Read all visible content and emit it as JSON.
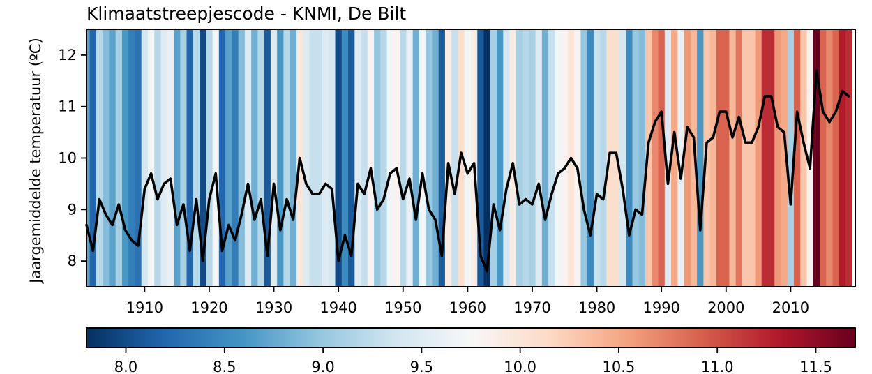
{
  "chart_data": {
    "type": "line",
    "title": "Klimaatstreepjescode - KNMI, De Bilt",
    "xlabel": "",
    "ylabel": "Jaargemiddelde temperatuur (ºC)",
    "xlim": [
      1901,
      2020
    ],
    "ylim": [
      7.5,
      12.5
    ],
    "x_ticks": [
      "1910",
      "1920",
      "1930",
      "1940",
      "1950",
      "1960",
      "1970",
      "1980",
      "1990",
      "2000",
      "2010"
    ],
    "y_ticks": [
      "8",
      "9",
      "10",
      "11",
      "12"
    ],
    "grid": false,
    "background": "warming stripes (one vertical band per year, colored by that year's temperature)",
    "line_color": "#000000",
    "series": [
      {
        "x": [
          1901,
          1902,
          1903,
          1904,
          1905,
          1906,
          1907,
          1908,
          1909,
          1910,
          1911,
          1912,
          1913,
          1914,
          1915,
          1916,
          1917,
          1918,
          1919,
          1920,
          1921,
          1922,
          1923,
          1924,
          1925,
          1926,
          1927,
          1928,
          1929,
          1930,
          1931,
          1932,
          1933,
          1934,
          1935,
          1936,
          1937,
          1938,
          1939,
          1940,
          1941,
          1942,
          1943,
          1944,
          1945,
          1946,
          1947,
          1948,
          1949,
          1950,
          1951,
          1952,
          1953,
          1954,
          1955,
          1956,
          1957,
          1958,
          1959,
          1960,
          1961,
          1962,
          1963,
          1964,
          1965,
          1966,
          1967,
          1968,
          1969,
          1970,
          1971,
          1972,
          1973,
          1974,
          1975,
          1976,
          1977,
          1978,
          1979,
          1980,
          1981,
          1982,
          1983,
          1984,
          1985,
          1986,
          1987,
          1988,
          1989,
          1990,
          1991,
          1992,
          1993,
          1994,
          1995,
          1996,
          1997,
          1998,
          1999,
          2000,
          2001,
          2002,
          2003,
          2004,
          2005,
          2006,
          2007,
          2008,
          2009,
          2010,
          2011,
          2012,
          2013,
          2014,
          2015,
          2016,
          2017,
          2018,
          2019
        ],
        "values": [
          8.7,
          8.2,
          9.2,
          8.9,
          8.7,
          9.1,
          8.6,
          8.4,
          8.3,
          9.4,
          9.7,
          9.2,
          9.5,
          9.6,
          8.7,
          9.1,
          8.2,
          9.2,
          8.0,
          9.2,
          9.7,
          8.2,
          8.7,
          8.4,
          8.9,
          9.5,
          8.8,
          9.2,
          8.1,
          9.5,
          8.6,
          9.2,
          8.8,
          10.0,
          9.5,
          9.3,
          9.3,
          9.5,
          9.4,
          8.0,
          8.5,
          8.1,
          9.5,
          9.3,
          9.8,
          9.0,
          9.2,
          9.7,
          9.8,
          9.2,
          9.6,
          8.8,
          9.7,
          9.0,
          8.8,
          8.1,
          9.9,
          9.3,
          10.1,
          9.7,
          9.9,
          8.1,
          7.8,
          9.1,
          8.6,
          9.4,
          9.9,
          9.1,
          9.2,
          9.1,
          9.5,
          8.8,
          9.3,
          9.7,
          9.8,
          10.0,
          9.8,
          9.0,
          8.5,
          9.3,
          9.2,
          10.1,
          10.1,
          9.4,
          8.5,
          9.0,
          8.9,
          10.3,
          10.7,
          10.9,
          9.5,
          10.5,
          9.6,
          10.6,
          10.4,
          8.6,
          10.3,
          10.4,
          10.9,
          10.9,
          10.4,
          10.8,
          10.3,
          10.3,
          10.6,
          11.2,
          11.2,
          10.6,
          10.5,
          9.1,
          10.9,
          10.3,
          9.8,
          11.7,
          10.9,
          10.7,
          10.9,
          11.3,
          11.2
        ]
      }
    ],
    "colorbar": {
      "orientation": "horizontal",
      "colormap": "RdBu_r",
      "range": [
        7.8,
        11.7
      ],
      "ticks": [
        "8.0",
        "8.5",
        "9.0",
        "9.5",
        "10.0",
        "10.5",
        "11.0",
        "11.5"
      ]
    }
  }
}
